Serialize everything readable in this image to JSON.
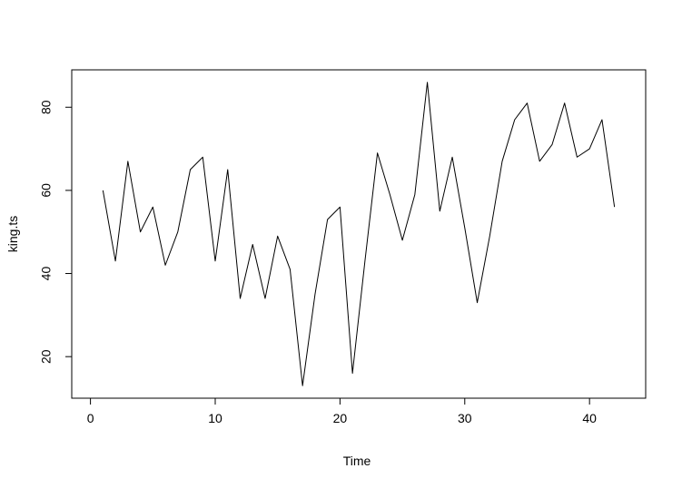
{
  "chart_data": {
    "type": "line",
    "title": "",
    "xlabel": "Time",
    "ylabel": "king.ts",
    "xlim": [
      -1.5,
      44.5
    ],
    "ylim": [
      10,
      89
    ],
    "x_ticks": [
      0,
      10,
      20,
      30,
      40
    ],
    "y_ticks": [
      20,
      40,
      60,
      80
    ],
    "x_tick_labels": [
      "0",
      "10",
      "20",
      "30",
      "40"
    ],
    "y_tick_labels": [
      "20",
      "40",
      "60",
      "80"
    ],
    "grid": false,
    "legend": "none",
    "line_color": "#000000",
    "series": [
      {
        "x": [
          1,
          2,
          3,
          4,
          5,
          6,
          7,
          8,
          9,
          10,
          11,
          12,
          13,
          14,
          15,
          16,
          17,
          18,
          19,
          20,
          21,
          22,
          23,
          24,
          25,
          26,
          27,
          28,
          29,
          30,
          31,
          32,
          33,
          34,
          35,
          36,
          37,
          38,
          39,
          40,
          41,
          42
        ],
        "values": [
          60,
          43,
          67,
          50,
          56,
          42,
          50,
          65,
          68,
          43,
          65,
          34,
          47,
          34,
          49,
          41,
          13,
          35,
          53,
          56,
          16,
          43,
          69,
          59,
          48,
          59,
          86,
          55,
          68,
          51,
          33,
          49,
          67,
          77,
          81,
          67,
          71,
          81,
          68,
          70,
          77,
          56
        ]
      }
    ]
  }
}
